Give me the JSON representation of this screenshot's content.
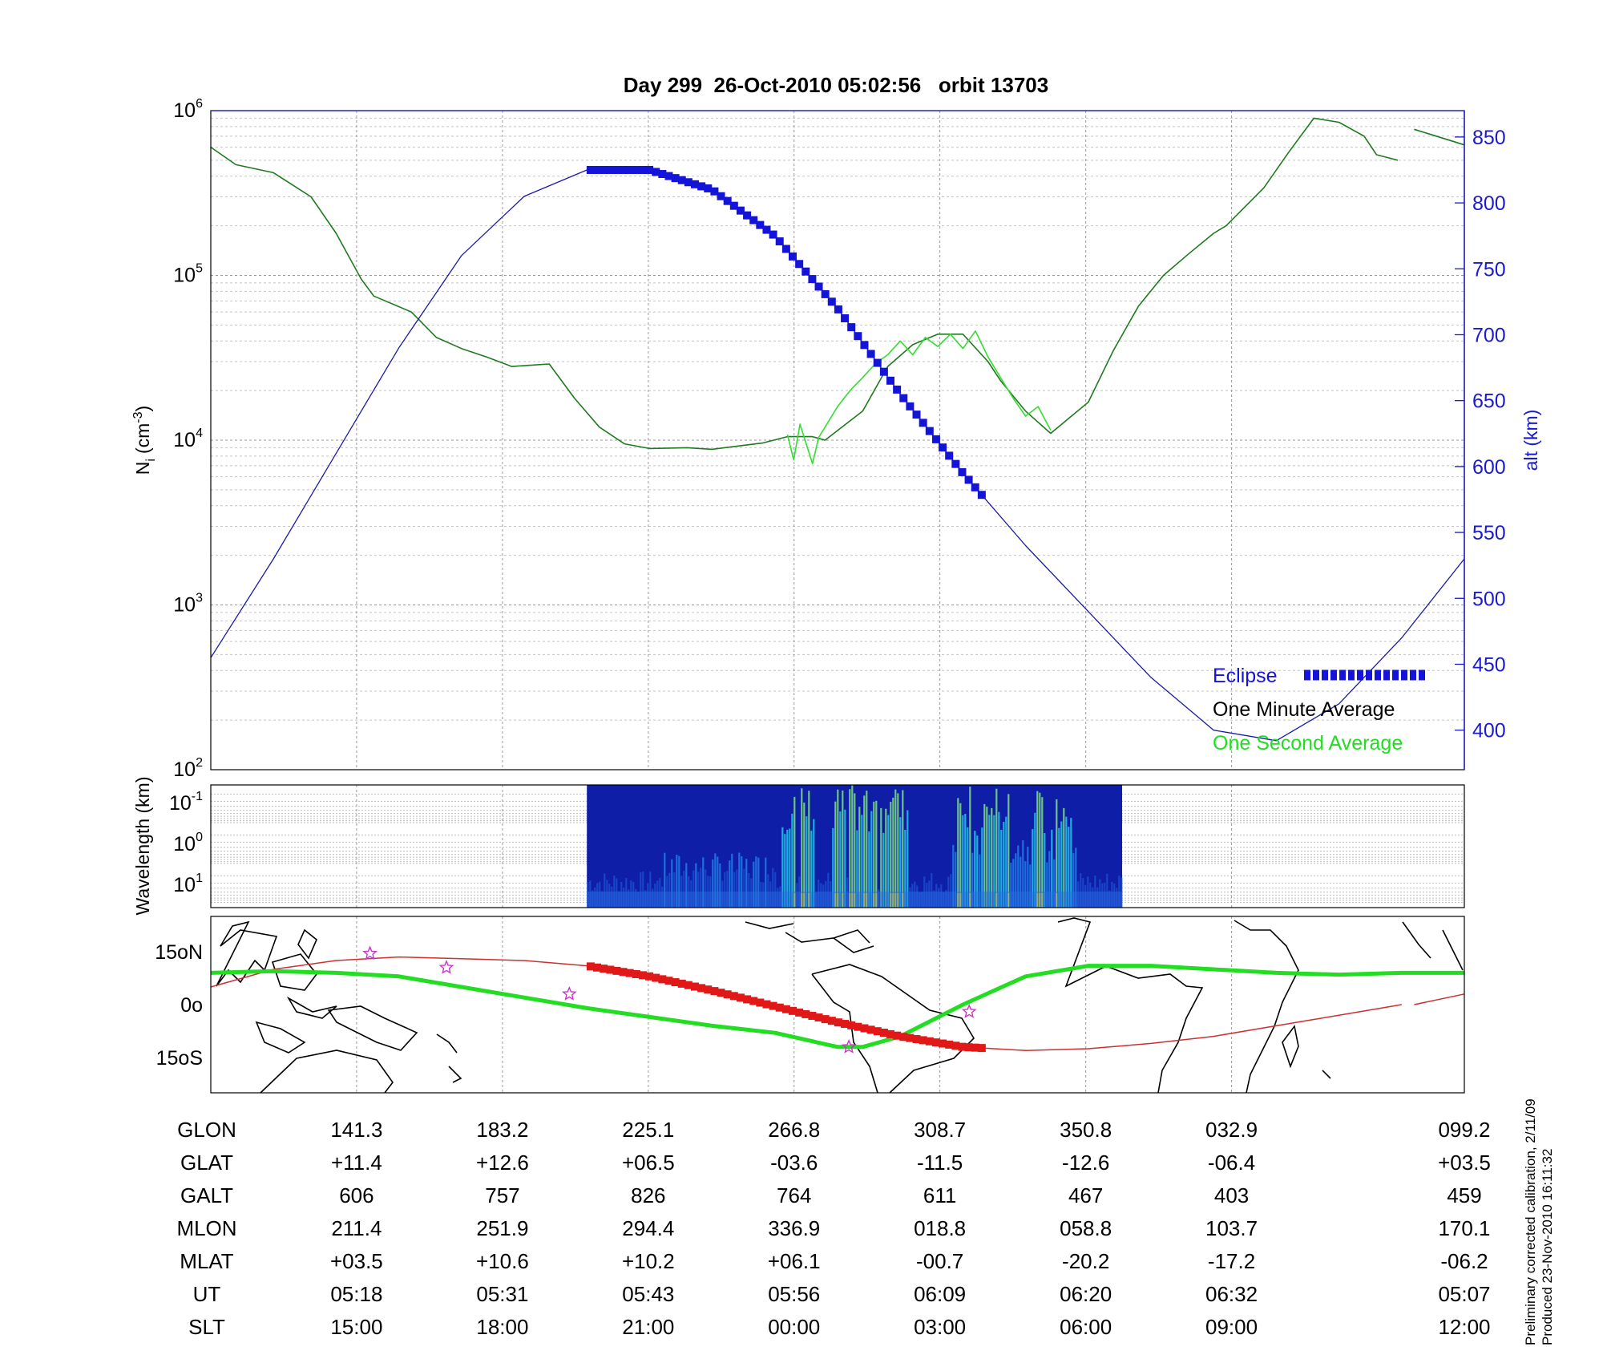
{
  "chart_data": [
    {
      "type": "line",
      "title": "Day 299  26-Oct-2010 05:02:56   orbit 13703",
      "ylabel": "N",
      "ylabel_sub": "i",
      "ylabel_unit": "(cm",
      "ylabel_exp": "-3",
      "ylabel_close": ")",
      "yscale": "log",
      "ylim": [
        100,
        1000000
      ],
      "y_tick_base": "10",
      "y_ticks": [
        {
          "exp": "2",
          "value": 100
        },
        {
          "exp": "3",
          "value": 1000
        },
        {
          "exp": "4",
          "value": 10000
        },
        {
          "exp": "5",
          "value": 100000
        },
        {
          "exp": "6",
          "value": 1000000
        }
      ],
      "y2label": "alt (km)",
      "y2lim": [
        370,
        870
      ],
      "y2_ticks": [
        400,
        450,
        500,
        550,
        600,
        650,
        700,
        750,
        800,
        850
      ],
      "xlim": [
        0,
        1
      ],
      "x_gridlines": [
        0.1163,
        0.2327,
        0.349,
        0.4653,
        0.5816,
        0.698,
        0.8143,
        1.0
      ],
      "grid": true,
      "legend_position": "bottom-right",
      "legend": [
        {
          "label": "Eclipse",
          "color": "#1414d8"
        },
        {
          "label": "One Minute Average",
          "color": "#000000"
        },
        {
          "label": "One Second Average",
          "color": "#22dd22"
        }
      ],
      "series": [
        {
          "name": "One Minute Average",
          "color": "#1f7a1f",
          "axis": "left",
          "x": [
            0,
            0.02,
            0.05,
            0.08,
            0.1,
            0.12,
            0.13,
            0.16,
            0.18,
            0.2,
            0.22,
            0.24,
            0.27,
            0.29,
            0.31,
            0.33,
            0.35,
            0.38,
            0.4,
            0.42,
            0.44,
            0.46,
            0.48,
            0.49,
            0.52,
            0.54,
            0.56,
            0.58,
            0.6,
            0.62,
            0.63,
            0.65,
            0.67,
            0.7,
            0.72,
            0.74,
            0.76,
            0.78,
            0.8,
            0.81,
            0.84,
            0.86,
            0.88,
            0.9,
            0.92,
            0.93,
            0.947
          ],
          "y": [
            600000,
            470000,
            420000,
            300000,
            180000,
            95000,
            75000,
            60000,
            42000,
            36000,
            32000,
            28000,
            29000,
            18000,
            12000,
            9500,
            8900,
            9000,
            8800,
            9200,
            9600,
            10500,
            10500,
            10000,
            15000,
            28000,
            38000,
            44000,
            44000,
            30000,
            23000,
            15000,
            11000,
            17000,
            35000,
            65000,
            100000,
            135000,
            180000,
            200000,
            340000,
            560000,
            900000,
            850000,
            700000,
            540000,
            500000
          ]
        },
        {
          "name": "One Minute Average",
          "color": "#1f7a1f",
          "axis": "left",
          "x": [
            0.96,
            1.0
          ],
          "y": [
            770000,
            620000
          ]
        },
        {
          "name": "One Second Average",
          "color": "#33dd33",
          "axis": "left",
          "x": [
            0.46,
            0.465,
            0.47,
            0.475,
            0.48,
            0.485,
            0.49,
            0.5,
            0.51,
            0.52,
            0.53,
            0.54,
            0.55,
            0.56,
            0.57,
            0.58,
            0.59,
            0.6,
            0.61,
            0.62,
            0.63,
            0.64,
            0.65,
            0.66,
            0.67
          ],
          "y": [
            10800,
            7600,
            12500,
            9500,
            7200,
            10400,
            12000,
            16000,
            20000,
            24000,
            29000,
            33000,
            40000,
            33000,
            42000,
            37000,
            44000,
            36000,
            46000,
            32000,
            24000,
            18000,
            14000,
            16000,
            11500
          ]
        },
        {
          "name": "alt (km)",
          "color": "#1a1aa8",
          "axis": "right",
          "x": [
            0,
            0.05,
            0.1,
            0.15,
            0.2,
            0.25,
            0.3,
            0.35,
            0.4,
            0.45,
            0.5,
            0.55,
            0.6,
            0.65,
            0.7,
            0.75,
            0.8,
            0.85,
            0.9,
            0.95,
            1.0
          ],
          "y": [
            455,
            530,
            610,
            690,
            760,
            805,
            825,
            825,
            810,
            775,
            720,
            655,
            595,
            540,
            490,
            440,
            400,
            392,
            420,
            470,
            530
          ]
        }
      ],
      "eclipse": {
        "x_start": 0.303,
        "x_end": 0.62,
        "color": "#1414d8"
      }
    },
    {
      "type": "heatmap",
      "ylabel": "Wavelength (km)",
      "y_ticks": [
        {
          "base": "10",
          "exp": "-1"
        },
        {
          "base": "10",
          "exp": "0"
        },
        {
          "base": "10",
          "exp": "1"
        }
      ],
      "x_range": [
        0.3,
        0.727
      ],
      "grid": true
    },
    {
      "type": "line",
      "subtype": "map",
      "y_ticks": [
        "15oN",
        "0o",
        "15oS"
      ],
      "y_tick_values": [
        15,
        0,
        -15
      ],
      "ylim": [
        -25,
        25
      ],
      "series": [
        {
          "name": "ground track",
          "color": "#cc3030",
          "x": [
            0,
            0.05,
            0.1,
            0.15,
            0.2,
            0.25,
            0.3,
            0.35,
            0.4,
            0.45,
            0.5,
            0.55,
            0.6,
            0.65,
            0.7,
            0.75,
            0.8,
            0.85,
            0.9,
            0.95
          ],
          "y": [
            5,
            10,
            12.5,
            13.5,
            13,
            12.5,
            11,
            8,
            4,
            -0.5,
            -5,
            -9,
            -12,
            -13,
            -12.5,
            -11,
            -9,
            -6,
            -3,
            0
          ]
        },
        {
          "name": "ground track",
          "color": "#cc3030",
          "x": [
            0.96,
            1.0
          ],
          "y": [
            0,
            3
          ]
        },
        {
          "name": "magnetic equator",
          "color": "#22dd22",
          "x": [
            0,
            0.05,
            0.1,
            0.15,
            0.2,
            0.25,
            0.3,
            0.35,
            0.4,
            0.45,
            0.5,
            0.52,
            0.55,
            0.6,
            0.65,
            0.7,
            0.75,
            0.8,
            0.85,
            0.9,
            0.95,
            1.0
          ],
          "y": [
            9,
            9.5,
            9,
            8,
            5,
            2,
            -1,
            -3.5,
            -6,
            -8,
            -12,
            -12,
            -9,
            0,
            8,
            11,
            11,
            10,
            9,
            8.5,
            9,
            9
          ]
        }
      ],
      "eclipse": {
        "x_start": 0.303,
        "x_end": 0.62,
        "color": "#e01818"
      },
      "stars": [
        {
          "x": 0.127,
          "y": 14.5
        },
        {
          "x": 0.188,
          "y": 10.5
        },
        {
          "x": 0.286,
          "y": 3
        },
        {
          "x": 0.509,
          "y": -12
        },
        {
          "x": 0.605,
          "y": -2
        }
      ]
    }
  ],
  "table": {
    "row_labels": [
      "GLON",
      "GLAT",
      "GALT",
      "MLON",
      "MLAT",
      "UT",
      "SLT"
    ],
    "columns": [
      [
        "141.3",
        "+11.4",
        "606",
        "211.4",
        "+03.5",
        "05:18",
        "15:00"
      ],
      [
        "183.2",
        "+12.6",
        "757",
        "251.9",
        "+10.6",
        "05:31",
        "18:00"
      ],
      [
        "225.1",
        "+06.5",
        "826",
        "294.4",
        "+10.2",
        "05:43",
        "21:00"
      ],
      [
        "266.8",
        "-03.6",
        "764",
        "336.9",
        "+06.1",
        "05:56",
        "00:00"
      ],
      [
        "308.7",
        "-11.5",
        "611",
        "018.8",
        "-00.7",
        "06:09",
        "03:00"
      ],
      [
        "350.8",
        "-12.6",
        "467",
        "058.8",
        "-20.2",
        "06:20",
        "06:00"
      ],
      [
        "032.9",
        "-06.4",
        "403",
        "103.7",
        "-17.2",
        "06:32",
        "09:00"
      ],
      [
        "099.2",
        "+03.5",
        "459",
        "170.1",
        "-06.2",
        "05:07",
        "12:00"
      ]
    ]
  },
  "notes": {
    "calibration": "Preliminary corrected calibration, 2/11/09",
    "produced": "Produced 23-Nov-2010 16:11:32"
  }
}
